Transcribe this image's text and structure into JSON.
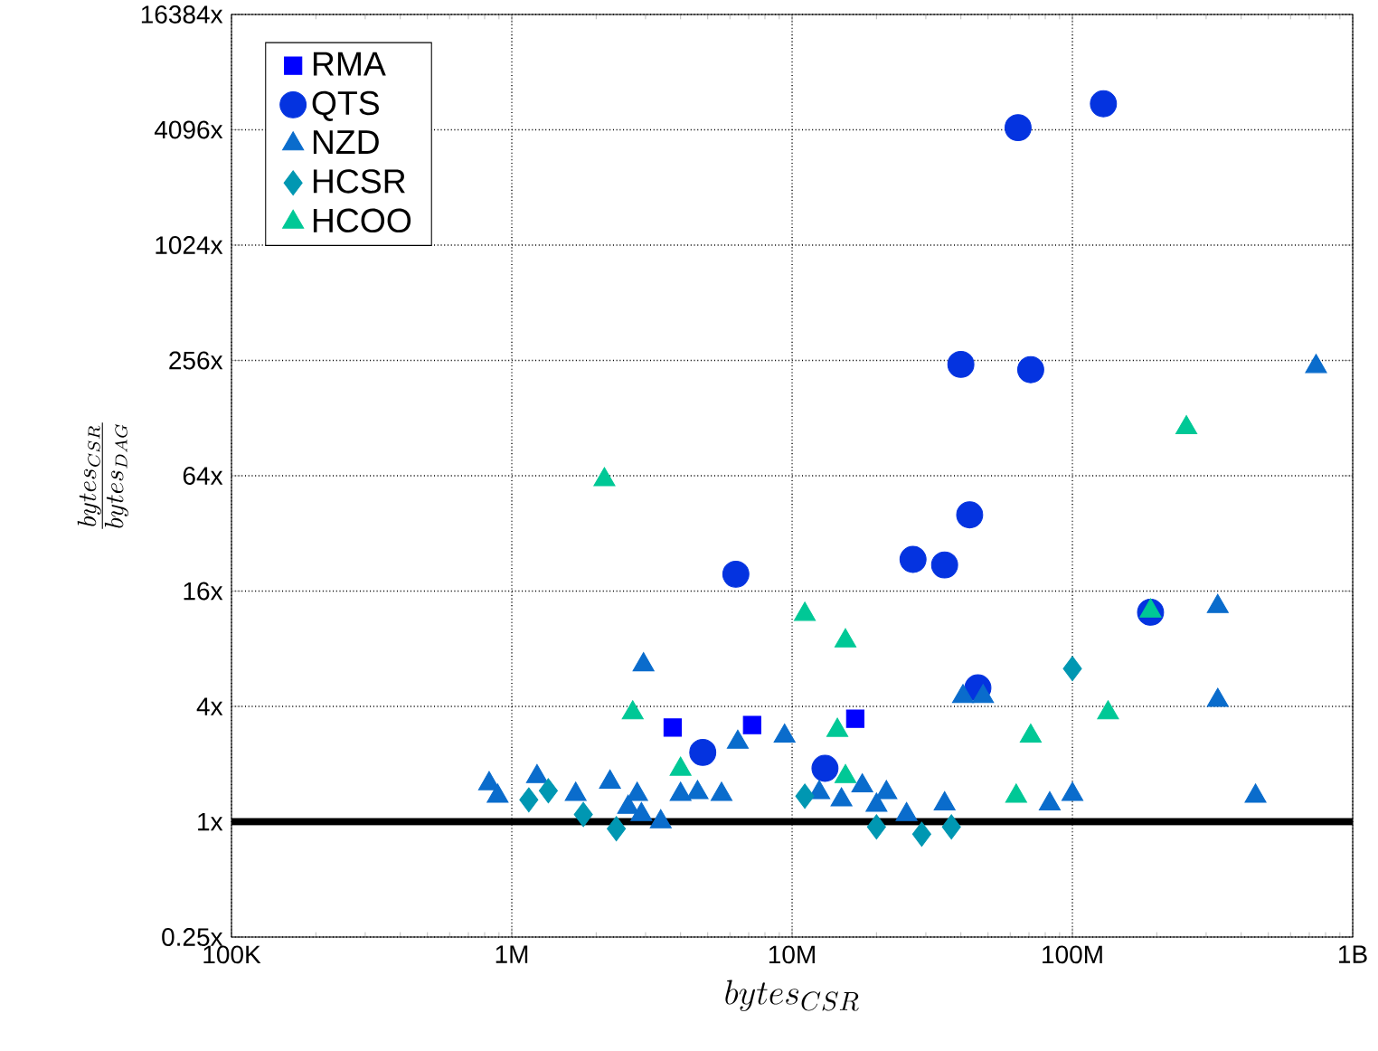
{
  "chart_data": {
    "type": "scatter",
    "xlabel": "bytes_{CSR}",
    "ylabel": "\\frac{bytes_{CSR}}{bytes_{DAG}}",
    "log": "xy",
    "grid": true,
    "legend": "top left",
    "xlim": [
      100000,
      1000000000
    ],
    "xticks": [
      {
        "value": 100000,
        "label": "100K"
      },
      {
        "value": 1000000,
        "label": "1M"
      },
      {
        "value": 10000000,
        "label": "10M"
      },
      {
        "value": 100000000,
        "label": "100M"
      },
      {
        "value": 1000000000,
        "label": "1B"
      }
    ],
    "ylim": [
      0.25,
      16384
    ],
    "yticks": [
      {
        "value": 0.25,
        "label": "0.25x"
      },
      {
        "value": 1,
        "label": "1x"
      },
      {
        "value": 4,
        "label": "4x"
      },
      {
        "value": 16,
        "label": "16x"
      },
      {
        "value": 64,
        "label": "64x"
      },
      {
        "value": 256,
        "label": "256x"
      },
      {
        "value": 1024,
        "label": "1024x"
      },
      {
        "value": 4096,
        "label": "4096x"
      },
      {
        "value": 16384,
        "label": "16384x"
      }
    ],
    "ref_lines": [
      {
        "axis": "y",
        "value": 1,
        "color": "#000000"
      }
    ],
    "series": [
      {
        "name": "RMA",
        "color": "#0000ff",
        "marker": "square",
        "x": [
          3750000,
          7200000,
          16800000
        ],
        "values": [
          3.1,
          3.2,
          3.45
        ]
      },
      {
        "name": "QTS",
        "color": "#0433e0",
        "marker": "circle",
        "x": [
          64000000,
          129000000,
          40000000,
          71000000,
          6300000,
          27000000,
          35000000,
          43000000,
          190000000,
          46000000,
          4800000,
          13100000
        ],
        "values": [
          4200,
          5600,
          244,
          229,
          19.6,
          23.4,
          21.9,
          40,
          12.4,
          5.0,
          2.3,
          1.9
        ]
      },
      {
        "name": "NZD",
        "color": "#0a6ccc",
        "marker": "triangle",
        "x": [
          740000000,
          330000000,
          2950000,
          40700000,
          48000000,
          330000000,
          9400000,
          6400000,
          83000000,
          100000000,
          450000000,
          830000,
          890000,
          1230000,
          1690000,
          2240000,
          2800000,
          2600000,
          2900000,
          3400000,
          4000000,
          4600000,
          5600000,
          12500000,
          15000000,
          17800000,
          21700000,
          20000000,
          25600000,
          35000000
        ],
        "values": [
          238,
          13.3,
          6.6,
          4.5,
          4.5,
          4.3,
          2.8,
          2.6,
          1.24,
          1.39,
          1.36,
          1.58,
          1.36,
          1.72,
          1.39,
          1.61,
          1.39,
          1.19,
          1.09,
          1.0,
          1.39,
          1.42,
          1.39,
          1.42,
          1.3,
          1.54,
          1.42,
          1.22,
          1.09,
          1.24
        ]
      },
      {
        "name": "HCSR",
        "color": "#0097b2",
        "marker": "diamond",
        "x": [
          100000000,
          1150000,
          1350000,
          1800000,
          2360000,
          11100000,
          20000000,
          29000000,
          37000000
        ],
        "values": [
          6.3,
          1.3,
          1.45,
          1.09,
          0.92,
          1.36,
          0.94,
          0.86,
          0.94
        ]
      },
      {
        "name": "HCOO",
        "color": "#00c896",
        "marker": "triangle",
        "x": [
          255000000,
          2140000,
          190000000,
          11100000,
          15500000,
          134000000,
          2700000,
          71000000,
          14500000,
          4000000,
          15500000,
          63000000
        ],
        "values": [
          114,
          61,
          12.6,
          12.1,
          8.8,
          3.7,
          3.7,
          2.8,
          3.0,
          1.88,
          1.72,
          1.36
        ]
      }
    ]
  }
}
